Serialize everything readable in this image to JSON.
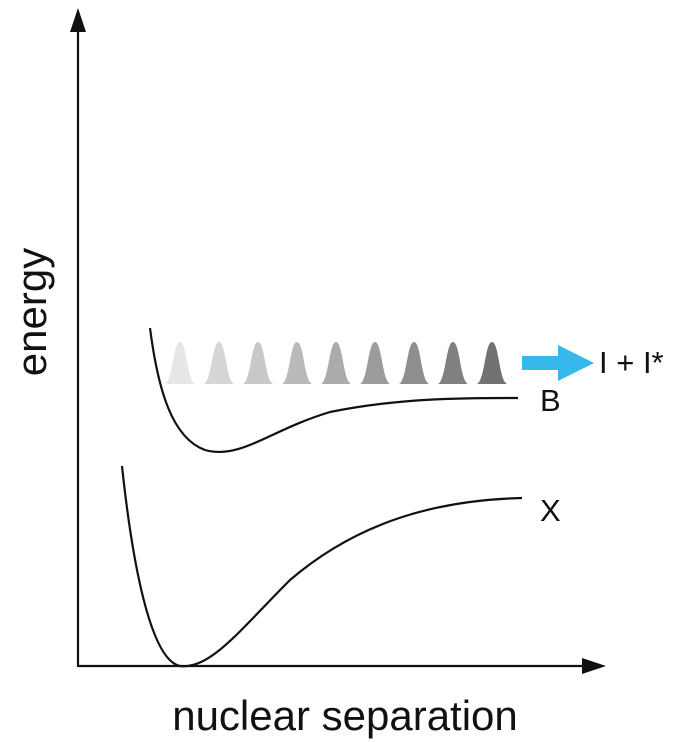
{
  "axes": {
    "y_label": "energy",
    "x_label": "nuclear separation"
  },
  "curves": {
    "upper_label": "B",
    "lower_label": "X"
  },
  "dissociation": {
    "products_label": "I + I*",
    "arrow_color": "#36b8ea"
  },
  "wavepackets": {
    "count": 9,
    "shades": [
      "#e6e6e6",
      "#d6d6d6",
      "#c8c8c8",
      "#bababa",
      "#ababab",
      "#9c9c9c",
      "#8e8e8e",
      "#808080",
      "#727272"
    ]
  },
  "colors": {
    "line": "#111111",
    "background": "#ffffff"
  }
}
